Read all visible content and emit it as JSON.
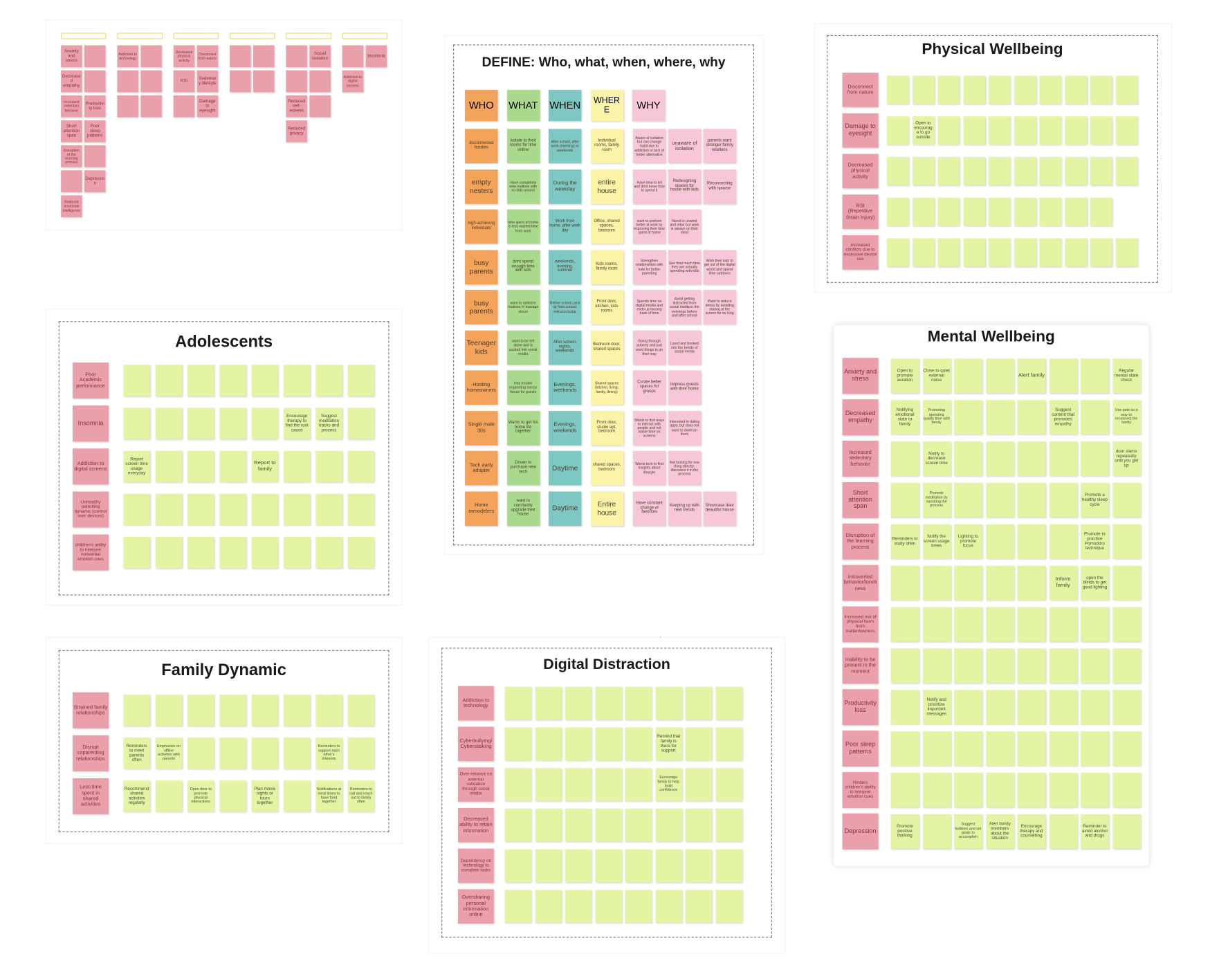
{
  "overview": {
    "columns": [
      {
        "items": [
          "Anxiety and stress",
          null,
          "Decreased empathy",
          null,
          "Increased sedentary behavior",
          "Productivity loss",
          "Short attention span",
          "Poor sleep patterns",
          "Disruption of the learning process",
          null,
          null,
          "Depression",
          "Reduced emotional intelligence"
        ]
      },
      {
        "items": [
          "Addiction to technology",
          null,
          null,
          null,
          null,
          null
        ]
      },
      {
        "items": [
          "Decreased physical activity",
          "Disconnect from nature",
          "RSI",
          "Sedentary lifestyle",
          null,
          "Damage to eyesight"
        ]
      },
      {
        "items": [
          null,
          null,
          null,
          null
        ]
      },
      {
        "items": [
          null,
          "Social isolation",
          null,
          null,
          "Reduced self-esteem",
          null,
          "Reduced privacy"
        ]
      },
      {
        "items": [
          null,
          "Insomnia",
          "Addiction to digital screens"
        ]
      }
    ]
  },
  "define": {
    "title": "DEFINE: Who, what, when, where, why",
    "columns": [
      "WHO",
      "WHAT",
      "WHEN",
      "WHERE",
      "WHY"
    ],
    "rows": [
      [
        "disconnected families",
        "isolate to their rooms for time online",
        "After school, after work (evening) or weekends",
        "Individual rooms, family room",
        "Aware of isolation but can change habit due to addiction or lack of better alternative",
        "unaware of isolation",
        "parents want stronger family relations"
      ],
      [
        "empty nesters",
        "Have completely new routines with no kids around",
        "During the weekday",
        "entire house",
        "Have time to kill and dont know how to spend it",
        "Redesigning spaces for house with kids",
        "Reconnecting with spouse"
      ],
      [
        "high-achieving individuals",
        "time spent at home is less wasted time from work",
        "Work from home, after work day",
        "Office, shared spaces, bedroom",
        "want to preform better at work by improving their time spent at home",
        "Need to unwind and relax but work is always on their mind"
      ],
      [
        "busy parents",
        "dont spend enough time with kids",
        "weekends, evening, summer",
        "Kids rooms, family room",
        "Strengthen relationships with kids for better parenting",
        "See how much time they are actually spending with kids",
        "Wish their kids to get out of the digital world and spend time outdoors"
      ],
      [
        "busy parents",
        "want to optimize routines to manage stress",
        "Before school, pick up from school, extracurricular",
        "Front door, kitchen, kids rooms",
        "Spends time on digital media and ends up loosing track of time",
        "Avoid getting distracted from social media in the evenings before and after school",
        "Want to reduce stress by avoiding staring at the screen for so long"
      ],
      [
        "Teenager kids",
        "want to be left alone and is sucked into social media",
        "After school, nights, weekends",
        "Bedroom door, shared spaces",
        "Going through puberty and just want things to go their way",
        "Lured and hooked into the trends of social media"
      ],
      [
        "Hosting homeowners",
        "Has trouble organizing messy house for guests",
        "Evenings, weekends",
        "Shared spaces (kitchen, living, family, dining)",
        "Curate better spaces for groups",
        "Impress guests with their home"
      ],
      [
        "Single male 30s",
        "Wants to get his home life together",
        "Evenings, weekends",
        "Front door, studio apt, bedroom",
        "Wants to find ways to interact with people and not waste time on screens",
        "Interested in dating apps, but does not want to dwell on them"
      ],
      [
        "Tech early adopter",
        "Driven to purchase new tech",
        "Daytime",
        "shared spaces, bedroom",
        "Wants tech to find insights about lifestyle",
        "Not looking for one thing directly; discovers it in the process"
      ],
      [
        "Home remodelers",
        "want to constantly upgrade their house",
        "Daytime",
        "Entire house",
        "Have constant change of favorites",
        "Keeping up with new trends",
        "Showcase their beautiful house"
      ]
    ]
  },
  "physical": {
    "title": "Physical Wellbeing",
    "rows": [
      {
        "label": "Disconnect from nature",
        "notes": [
          null,
          null,
          null,
          null,
          null,
          null,
          null,
          null,
          null,
          null
        ]
      },
      {
        "label": "Damage to eyesight",
        "notes": [
          null,
          "Open to encourage to go outside",
          null,
          null,
          null,
          null,
          null,
          null,
          null,
          null
        ]
      },
      {
        "label": "Decreased physical activity",
        "notes": [
          null,
          null,
          null,
          null,
          null,
          null,
          null,
          null,
          null,
          null
        ]
      },
      {
        "label": "RSI (Repetitive Strain Injury)",
        "notes": [
          null,
          null,
          null,
          null,
          null,
          null,
          null,
          null,
          null
        ]
      },
      {
        "label": "Increased conflicts due to excessive device use",
        "notes": [
          null,
          null,
          null,
          null,
          null,
          null,
          null,
          null,
          null,
          null
        ]
      }
    ]
  },
  "adolescents": {
    "title": "Adolescents",
    "rows": [
      {
        "label": "Poor Academic performance",
        "notes": [
          null,
          null,
          null,
          null,
          null,
          null,
          null,
          null
        ]
      },
      {
        "label": "Insomnia",
        "notes": [
          null,
          null,
          null,
          null,
          null,
          "Encourage therapy to find the root cause",
          "Suggest meditation tracks and process",
          null
        ]
      },
      {
        "label": "Addiction to digital screens",
        "notes": [
          "Report screen time usage everyday",
          null,
          null,
          null,
          "Report to family",
          null,
          null,
          null
        ]
      },
      {
        "label": "Unhealthy parenting dynamic (control over devices)",
        "notes": [
          null,
          null,
          null,
          null,
          null,
          null,
          null,
          null
        ]
      },
      {
        "label": "children's ability to interpret nonverbal emotion cues",
        "notes": [
          null,
          null,
          null,
          null,
          null,
          null,
          null,
          null
        ]
      }
    ]
  },
  "family": {
    "title": "Family Dynamic",
    "rows": [
      {
        "label": "Strained family relationships",
        "notes": [
          null,
          null,
          null,
          null,
          null,
          null,
          null,
          null
        ]
      },
      {
        "label": "Disrupt coparenting relationships",
        "notes": [
          "Reminders to meet parents often",
          "Emphasize on offline activities with parents",
          null,
          null,
          null,
          null,
          "Reminders to support each other's interests",
          null
        ]
      },
      {
        "label": "Less time spent in shared activities",
        "notes": [
          "Recommend shared activities regularly",
          null,
          "Open door to promote physical interactions",
          null,
          "Plan movie nights or tours together",
          null,
          "Notifications at meal times to have food together",
          "Reminders to call and reach out to family often"
        ]
      }
    ]
  },
  "digital": {
    "title": "Digital Distraction",
    "rows": [
      {
        "label": "Addiction to technology",
        "notes": [
          null,
          null,
          null,
          null,
          null,
          null,
          null,
          null
        ]
      },
      {
        "label": "Cyberbullying/ Cyberstalking",
        "notes": [
          null,
          null,
          null,
          null,
          null,
          "Remind that family is there for support",
          null,
          null
        ]
      },
      {
        "label": "Over-reliance on external validation through social media",
        "notes": [
          null,
          null,
          null,
          null,
          null,
          "Encourage family to help build confidence",
          null,
          null
        ]
      },
      {
        "label": "Decreased ability to retain information",
        "notes": [
          null,
          null,
          null,
          null,
          null,
          null,
          null,
          null
        ]
      },
      {
        "label": "Dependency on technology to complete tasks",
        "notes": [
          null,
          null,
          null,
          null,
          null,
          null,
          null,
          null
        ]
      },
      {
        "label": "Oversharing personal information online",
        "notes": [
          null,
          null,
          null,
          null,
          null,
          null,
          null,
          null
        ]
      }
    ]
  },
  "mental": {
    "title": "Mental Wellbeing",
    "rows": [
      {
        "label": "Anxiety and stress",
        "notes": [
          "Open to promote aeration",
          "Close to quiet external noise",
          null,
          null,
          "Alert family",
          null,
          null,
          "Regular mental state check"
        ]
      },
      {
        "label": "Decreased empathy",
        "notes": [
          "Notifying emotional state to family",
          "Promoting spending quality time with family",
          null,
          null,
          null,
          "Suggest content that promotes empathy",
          null,
          "Use pets as a way to reconnect the family"
        ]
      },
      {
        "label": "Increased sedentary behavior",
        "notes": [
          null,
          "Notify to decrease screen time",
          null,
          null,
          null,
          null,
          null,
          "door slams repeatedly until you get up"
        ]
      },
      {
        "label": "Short attention span",
        "notes": [
          null,
          "Promote meditation by narrating the process",
          null,
          null,
          null,
          null,
          "Promote a healthy sleep cycle",
          null
        ]
      },
      {
        "label": "Disruption of the learning process",
        "notes": [
          "Reminders to study often",
          "Notify the screen usage times",
          "Lighting to promote focus",
          null,
          null,
          null,
          "Promote to practice Pomodoro technique",
          null
        ]
      },
      {
        "label": "Introverted behavior/loneliness",
        "notes": [
          null,
          null,
          null,
          null,
          null,
          "Inform family",
          "open the blinds to get good lighting",
          null
        ]
      },
      {
        "label": "Increased risk of physical harm from inattentiveness",
        "notes": [
          null,
          null,
          null,
          null,
          null,
          null,
          null,
          null
        ]
      },
      {
        "label": "Inability to be present in the moment",
        "notes": [
          null,
          null,
          null,
          null,
          null,
          null,
          null,
          null
        ]
      },
      {
        "label": "Productivity loss",
        "notes": [
          null,
          "Notify and prioritize important messages",
          null,
          null,
          null,
          null,
          null,
          null
        ]
      },
      {
        "label": "Poor sleep patterns",
        "notes": [
          null,
          null,
          null,
          null,
          null,
          null,
          null,
          null
        ]
      },
      {
        "label": "Hinders children's ability to interpret emotion cues",
        "notes": [
          null,
          null,
          null,
          null,
          null,
          null,
          null,
          null
        ]
      },
      {
        "label": "Depression",
        "notes": [
          "Promote positive thinking",
          null,
          "Suggest hobbies and set goals to accomplish",
          "Alert family members about the situation",
          "Encourage therapy and counselling",
          null,
          "Reminder to avoid alcohol and drugs",
          null
        ]
      }
    ]
  }
}
